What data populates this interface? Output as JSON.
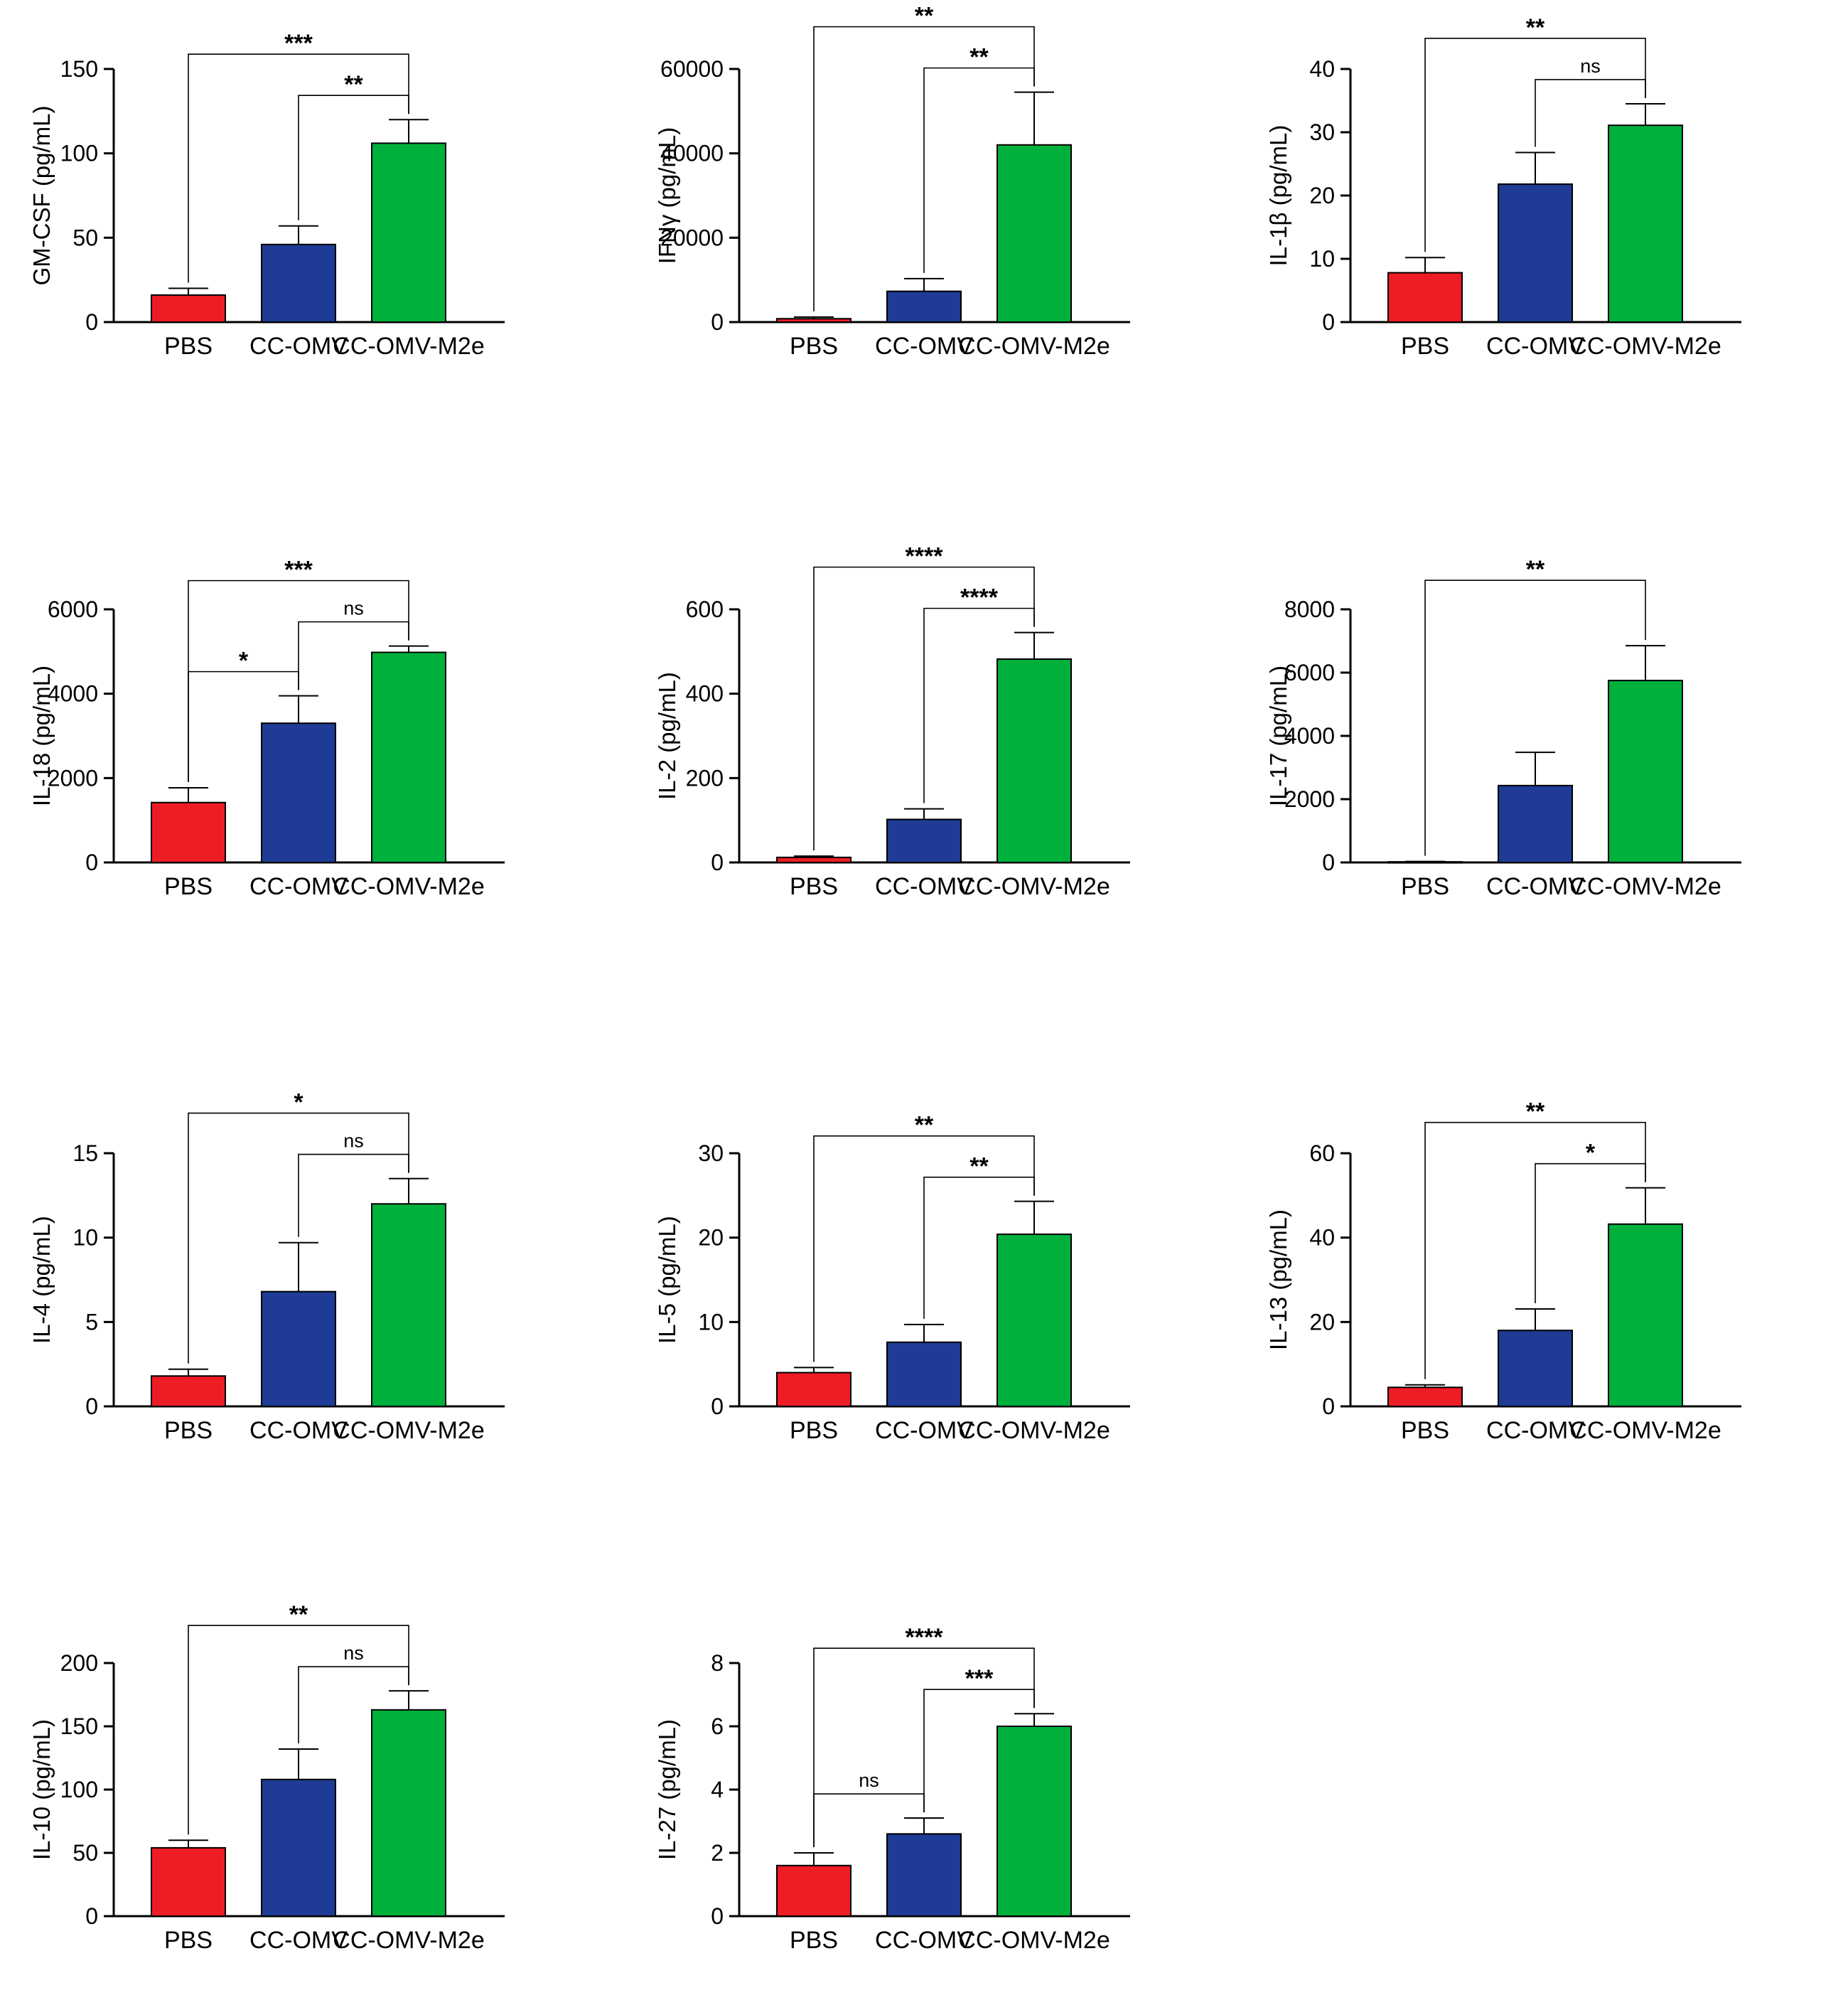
{
  "colors": {
    "PBS": "#ee1c24",
    "CC-OMV": "#1e3c96",
    "CC-OMV-M2e": "#00b03c"
  },
  "chart_data": [
    {
      "type": "bar",
      "ylabel": "GM-CSF (pg/mL)",
      "categories": [
        "PBS",
        "CC-OMV",
        "CC-OMV-M2e"
      ],
      "values": [
        16,
        46,
        106
      ],
      "errors": [
        4,
        11,
        14
      ],
      "ylim": [
        0,
        150
      ],
      "yticks": [
        "0",
        "50",
        "100",
        "150"
      ],
      "brackets": [
        {
          "from": 0,
          "to": 2,
          "label": "***"
        },
        {
          "from": 1,
          "to": 2,
          "label": "**"
        }
      ]
    },
    {
      "type": "bar",
      "ylabel": "IFNγ (pg/mL)",
      "categories": [
        "PBS",
        "CC-OMV",
        "CC-OMV-M2e"
      ],
      "values": [
        800,
        7300,
        42000
      ],
      "errors": [
        400,
        3000,
        12500
      ],
      "ylim": [
        0,
        60000
      ],
      "yticks": [
        "0",
        "20000",
        "40000",
        "60000"
      ],
      "brackets": [
        {
          "from": 0,
          "to": 2,
          "label": "**"
        },
        {
          "from": 1,
          "to": 2,
          "label": "**"
        }
      ]
    },
    {
      "type": "bar",
      "ylabel": "IL-1β (pg/mL)",
      "categories": [
        "PBS",
        "CC-OMV",
        "CC-OMV-M2e"
      ],
      "values": [
        7.8,
        21.8,
        31.1
      ],
      "errors": [
        2.4,
        5.0,
        3.4
      ],
      "ylim": [
        0,
        40
      ],
      "yticks": [
        "0",
        "10",
        "20",
        "30",
        "40"
      ],
      "brackets": [
        {
          "from": 0,
          "to": 2,
          "label": "**"
        },
        {
          "from": 1,
          "to": 2,
          "label": "ns"
        }
      ]
    },
    {
      "type": "bar",
      "ylabel": "IL-18 (pg/mL)",
      "categories": [
        "PBS",
        "CC-OMV",
        "CC-OMV-M2e"
      ],
      "values": [
        1420,
        3300,
        4980
      ],
      "errors": [
        350,
        650,
        150
      ],
      "ylim": [
        0,
        6000
      ],
      "yticks": [
        "0",
        "2000",
        "4000",
        "6000"
      ],
      "brackets": [
        {
          "from": 0,
          "to": 2,
          "label": "***"
        },
        {
          "from": 0,
          "to": 1,
          "label": "*"
        },
        {
          "from": 1,
          "to": 2,
          "label": "ns"
        }
      ]
    },
    {
      "type": "bar",
      "ylabel": "IL-2 (pg/mL)",
      "categories": [
        "PBS",
        "CC-OMV",
        "CC-OMV-M2e"
      ],
      "values": [
        12,
        102,
        482
      ],
      "errors": [
        3,
        25,
        63
      ],
      "ylim": [
        0,
        600
      ],
      "yticks": [
        "0",
        "200",
        "400",
        "600"
      ],
      "brackets": [
        {
          "from": 0,
          "to": 2,
          "label": "****"
        },
        {
          "from": 1,
          "to": 2,
          "label": "****"
        }
      ]
    },
    {
      "type": "bar",
      "ylabel": "IL-17 (pg/mL)",
      "categories": [
        "PBS",
        "CC-OMV",
        "CC-OMV-M2e"
      ],
      "values": [
        20,
        2430,
        5750
      ],
      "errors": [
        10,
        1050,
        1100
      ],
      "ylim": [
        0,
        8000
      ],
      "yticks": [
        "0",
        "2000",
        "4000",
        "6000",
        "8000"
      ],
      "brackets": [
        {
          "from": 0,
          "to": 2,
          "label": "**"
        }
      ]
    },
    {
      "type": "bar",
      "ylabel": "IL-4 (pg/mL)",
      "categories": [
        "PBS",
        "CC-OMV",
        "CC-OMV-M2e"
      ],
      "values": [
        1.8,
        6.8,
        12.0
      ],
      "errors": [
        0.4,
        2.9,
        1.5
      ],
      "ylim": [
        0,
        15
      ],
      "yticks": [
        "0",
        "5",
        "10",
        "15"
      ],
      "brackets": [
        {
          "from": 0,
          "to": 2,
          "label": "*"
        },
        {
          "from": 1,
          "to": 2,
          "label": "ns"
        }
      ]
    },
    {
      "type": "bar",
      "ylabel": "IL-5 (pg/mL)",
      "categories": [
        "PBS",
        "CC-OMV",
        "CC-OMV-M2e"
      ],
      "values": [
        4.0,
        7.6,
        20.4
      ],
      "errors": [
        0.6,
        2.1,
        3.9
      ],
      "ylim": [
        0,
        30
      ],
      "yticks": [
        "0",
        "10",
        "20",
        "30"
      ],
      "brackets": [
        {
          "from": 0,
          "to": 2,
          "label": "**"
        },
        {
          "from": 1,
          "to": 2,
          "label": "**"
        }
      ]
    },
    {
      "type": "bar",
      "ylabel": "IL-13 (pg/mL)",
      "categories": [
        "PBS",
        "CC-OMV",
        "CC-OMV-M2e"
      ],
      "values": [
        4.5,
        18.0,
        43.2
      ],
      "errors": [
        0.6,
        5.1,
        8.6
      ],
      "ylim": [
        0,
        60
      ],
      "yticks": [
        "0",
        "20",
        "40",
        "60"
      ],
      "brackets": [
        {
          "from": 0,
          "to": 2,
          "label": "**"
        },
        {
          "from": 1,
          "to": 2,
          "label": "*"
        }
      ]
    },
    {
      "type": "bar",
      "ylabel": "IL-10 (pg/mL)",
      "categories": [
        "PBS",
        "CC-OMV",
        "CC-OMV-M2e"
      ],
      "values": [
        54,
        108,
        163
      ],
      "errors": [
        6,
        24,
        15
      ],
      "ylim": [
        0,
        200
      ],
      "yticks": [
        "0",
        "50",
        "100",
        "150",
        "200"
      ],
      "brackets": [
        {
          "from": 0,
          "to": 2,
          "label": "**"
        },
        {
          "from": 1,
          "to": 2,
          "label": "ns"
        }
      ]
    },
    {
      "type": "bar",
      "ylabel": "IL-27 (pg/mL)",
      "categories": [
        "PBS",
        "CC-OMV",
        "CC-OMV-M2e"
      ],
      "values": [
        1.6,
        2.6,
        6.0
      ],
      "errors": [
        0.4,
        0.5,
        0.4
      ],
      "ylim": [
        0,
        8
      ],
      "yticks": [
        "0",
        "2",
        "4",
        "6",
        "8"
      ],
      "brackets": [
        {
          "from": 0,
          "to": 2,
          "label": "****"
        },
        {
          "from": 0,
          "to": 1,
          "label": "ns"
        },
        {
          "from": 1,
          "to": 2,
          "label": "***"
        }
      ]
    }
  ]
}
